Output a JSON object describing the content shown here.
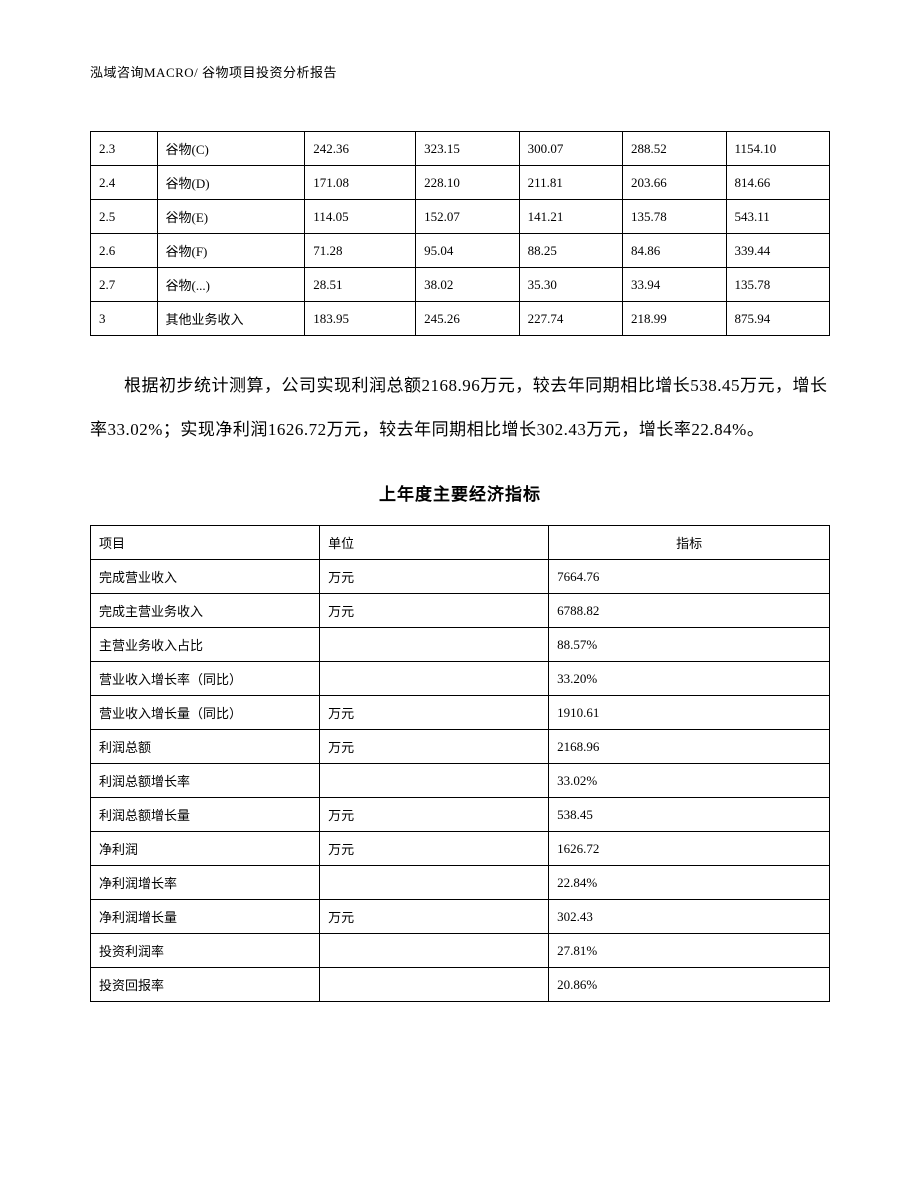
{
  "header": {
    "text": "泓域咨询MACRO/    谷物项目投资分析报告"
  },
  "table1": {
    "rows": [
      [
        "2.3",
        "谷物(C)",
        "242.36",
        "323.15",
        "300.07",
        "288.52",
        "1154.10"
      ],
      [
        "2.4",
        "谷物(D)",
        "171.08",
        "228.10",
        "211.81",
        "203.66",
        "814.66"
      ],
      [
        "2.5",
        "谷物(E)",
        "114.05",
        "152.07",
        "141.21",
        "135.78",
        "543.11"
      ],
      [
        "2.6",
        "谷物(F)",
        "71.28",
        "95.04",
        "88.25",
        "84.86",
        "339.44"
      ],
      [
        "2.7",
        "谷物(...)",
        "28.51",
        "38.02",
        "35.30",
        "33.94",
        "135.78"
      ],
      [
        "3",
        "其他业务收入",
        "183.95",
        "245.26",
        "227.74",
        "218.99",
        "875.94"
      ]
    ]
  },
  "paragraph": {
    "text": "根据初步统计测算，公司实现利润总额2168.96万元，较去年同期相比增长538.45万元，增长率33.02%；实现净利润1626.72万元，较去年同期相比增长302.43万元，增长率22.84%。"
  },
  "section_title": "上年度主要经济指标",
  "table2": {
    "header": [
      "项目",
      "单位",
      "指标"
    ],
    "rows": [
      [
        "完成营业收入",
        "万元",
        "7664.76"
      ],
      [
        "完成主营业务收入",
        "万元",
        "6788.82"
      ],
      [
        "主营业务收入占比",
        "",
        "88.57%"
      ],
      [
        "营业收入增长率（同比）",
        "",
        "33.20%"
      ],
      [
        "营业收入增长量（同比）",
        "万元",
        "1910.61"
      ],
      [
        "利润总额",
        "万元",
        "2168.96"
      ],
      [
        "利润总额增长率",
        "",
        "33.02%"
      ],
      [
        "利润总额增长量",
        "万元",
        "538.45"
      ],
      [
        "净利润",
        "万元",
        "1626.72"
      ],
      [
        "净利润增长率",
        "",
        "22.84%"
      ],
      [
        "净利润增长量",
        "万元",
        "302.43"
      ],
      [
        "投资利润率",
        "",
        "27.81%"
      ],
      [
        "投资回报率",
        "",
        "20.86%"
      ]
    ]
  }
}
